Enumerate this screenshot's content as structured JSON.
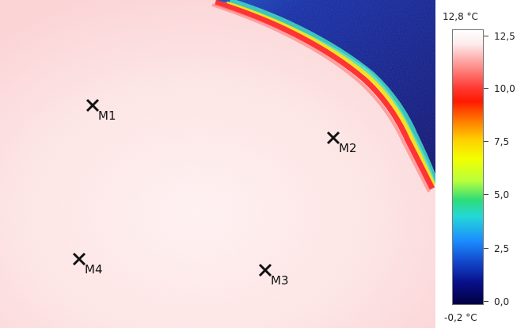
{
  "markers": [
    {
      "label": "M1"
    },
    {
      "label": "M2"
    },
    {
      "label": "M3"
    },
    {
      "label": "M4"
    }
  ],
  "scale": {
    "max_label": "12,8 °C",
    "min_label": "-0,2 °C",
    "ticks": [
      "12,5",
      "10,0",
      "7,5",
      "5,0",
      "2,5",
      "0,0"
    ]
  },
  "colors": {
    "warm_surface": "#fde6e6",
    "hot_edge": "#ff2020",
    "cold_background": "#0a1a8a"
  }
}
